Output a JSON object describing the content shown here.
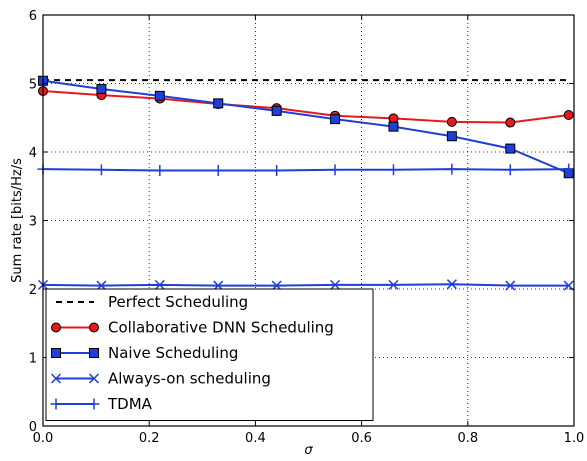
{
  "chart_data": {
    "type": "line",
    "xlabel": "σ",
    "ylabel": "Sum rate [bits/Hz/s",
    "xlim": [
      0,
      1
    ],
    "ylim": [
      0,
      6
    ],
    "xticks": [
      "0.0",
      "0.2",
      "0.4",
      "0.6",
      "0.8",
      "1.0"
    ],
    "yticks": [
      "0",
      "1",
      "2",
      "3",
      "4",
      "5",
      "6"
    ],
    "grid": true,
    "legend_position": "lower-left",
    "x": [
      0,
      0.11,
      0.22,
      0.33,
      0.44,
      0.55,
      0.66,
      0.77,
      0.88,
      0.99
    ],
    "series": [
      {
        "name": "Perfect Scheduling",
        "color": "#000000",
        "style": "dashed",
        "marker": "none",
        "x": [
          0,
          0.99
        ],
        "values": [
          5.05,
          5.05
        ]
      },
      {
        "name": "Collaborative DNN Scheduling",
        "color": "#e41a1c",
        "style": "solid",
        "marker": "circle",
        "values": [
          4.89,
          4.83,
          4.78,
          4.7,
          4.64,
          4.53,
          4.49,
          4.44,
          4.43,
          4.54
        ]
      },
      {
        "name": "Naive Scheduling",
        "color": "#1f3fd6",
        "style": "solid",
        "marker": "square",
        "values": [
          5.04,
          4.92,
          4.82,
          4.71,
          4.6,
          4.48,
          4.37,
          4.23,
          4.05,
          3.69
        ]
      },
      {
        "name": "Always-on scheduling",
        "color": "#1f3fd6",
        "style": "solid",
        "marker": "x",
        "values": [
          2.06,
          2.05,
          2.06,
          2.05,
          2.05,
          2.06,
          2.06,
          2.07,
          2.05,
          2.05
        ]
      },
      {
        "name": "TDMA",
        "color": "#1f3fd6",
        "style": "solid",
        "marker": "plus",
        "values": [
          3.75,
          3.74,
          3.73,
          3.73,
          3.73,
          3.74,
          3.74,
          3.75,
          3.74,
          3.75
        ]
      }
    ]
  }
}
